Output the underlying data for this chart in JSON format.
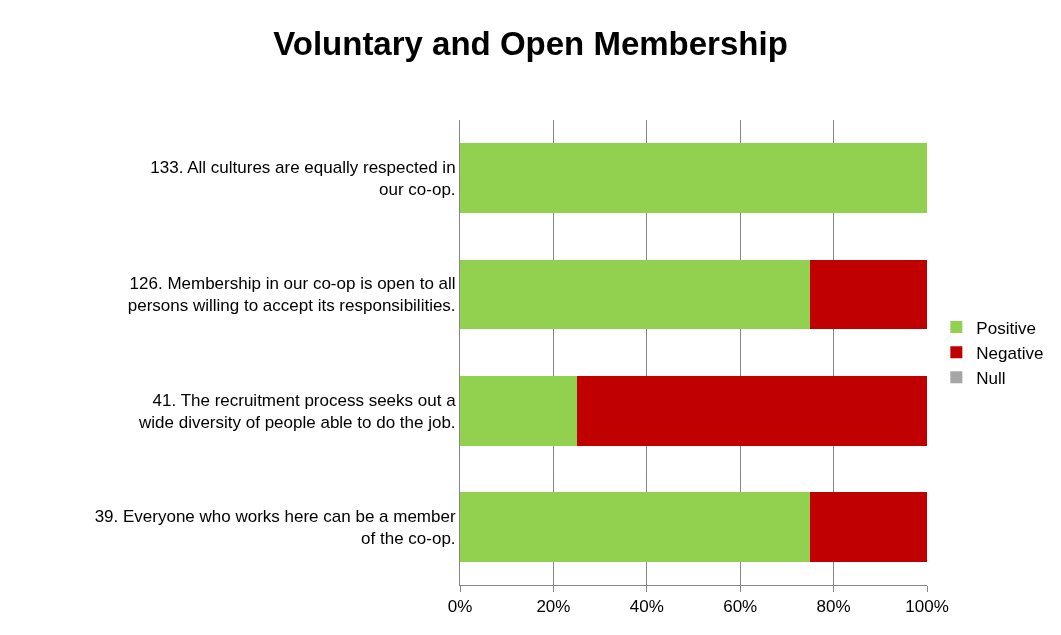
{
  "chart_data": {
    "type": "bar",
    "title": "Voluntary and Open Membership",
    "orientation": "horizontal",
    "stacked": true,
    "categories": [
      "133. All cultures are equally respected in our co-op.",
      "126. Membership in our co-op is open to all persons willing to accept its responsibilities.",
      "41. The recruitment process seeks out a wide diversity of people able to do the job.",
      "39. Everyone who works here can be a member of the co-op."
    ],
    "series": [
      {
        "name": "Positive",
        "color": "#92d050",
        "values": [
          100,
          75,
          25,
          75
        ]
      },
      {
        "name": "Negative",
        "color": "#c00000",
        "values": [
          0,
          25,
          75,
          25
        ]
      },
      {
        "name": "Null",
        "color": "#a5a5a5",
        "values": [
          0,
          0,
          0,
          0
        ]
      }
    ],
    "xlim": [
      0,
      100
    ],
    "xticks": [
      {
        "value": 0,
        "label": "0%"
      },
      {
        "value": 20,
        "label": "20%"
      },
      {
        "value": 40,
        "label": "40%"
      },
      {
        "value": 60,
        "label": "60%"
      },
      {
        "value": 80,
        "label": "80%"
      },
      {
        "value": 100,
        "label": "100%"
      }
    ],
    "grid": "x",
    "legend": "right"
  }
}
